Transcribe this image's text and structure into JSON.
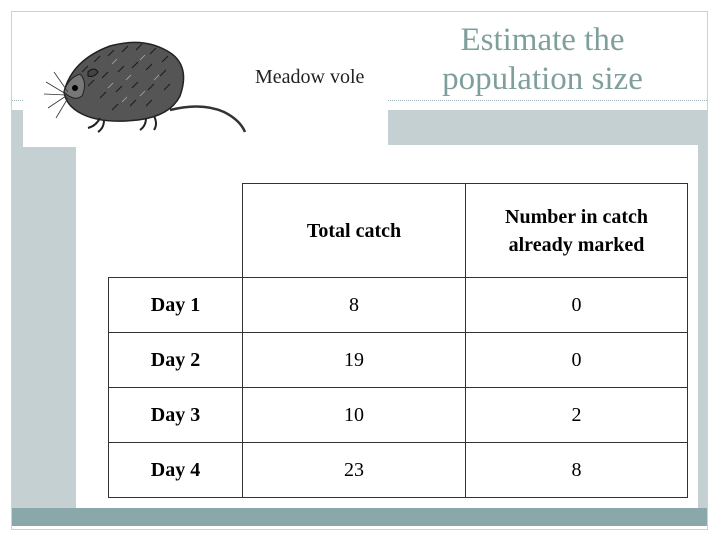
{
  "slide": {
    "title": "Estimate the population size",
    "image_caption": "Meadow vole",
    "image_icon": "meadow-vole-illustration"
  },
  "table": {
    "headers": [
      "",
      "Total catch",
      "Number in catch already marked"
    ],
    "rows": [
      {
        "label": "Day 1",
        "total_catch": "8",
        "already_marked": "0"
      },
      {
        "label": "Day 2",
        "total_catch": "19",
        "already_marked": "0"
      },
      {
        "label": "Day 3",
        "total_catch": "10",
        "already_marked": "2"
      },
      {
        "label": "Day 4",
        "total_catch": "23",
        "already_marked": "8"
      }
    ]
  },
  "colors": {
    "title": "#7f9f9c",
    "upper_band": "#c5d0d3",
    "lower_band": "#8aa8aa"
  }
}
